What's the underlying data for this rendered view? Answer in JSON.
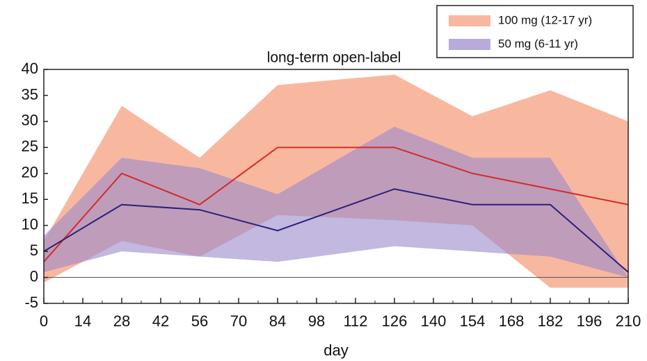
{
  "chart_data": {
    "type": "line",
    "title": "long-term open-label",
    "x_label": "day",
    "x": [
      0,
      28,
      56,
      84,
      126,
      154,
      182,
      210
    ],
    "series": [
      {
        "name": "100 mg (12-17 yr)",
        "color": "#d42a2a",
        "band_color": "#f7ab8f",
        "values": [
          3,
          20,
          14,
          25,
          25,
          20,
          17,
          14
        ],
        "upper": [
          7,
          33,
          23,
          37,
          39,
          31,
          36,
          30
        ],
        "lower": [
          -1,
          7,
          4,
          12,
          11,
          10,
          -2,
          -2
        ]
      },
      {
        "name": "50 mg (6-11 yr)",
        "color": "#2a1f7a",
        "band_color": "#9a88cc",
        "values": [
          5,
          14,
          13,
          9,
          17,
          14,
          14,
          1
        ],
        "upper": [
          8,
          23,
          21,
          16,
          29,
          23,
          23,
          0
        ],
        "lower": [
          1,
          5,
          4,
          3,
          6,
          5,
          4,
          0
        ]
      }
    ],
    "xlim": [
      0,
      210
    ],
    "xticks": [
      0,
      14,
      28,
      42,
      56,
      70,
      84,
      98,
      112,
      126,
      140,
      154,
      168,
      182,
      196,
      210
    ],
    "ylim": [
      -5,
      40
    ],
    "yticks": [
      -5,
      0,
      5,
      10,
      15,
      20,
      25,
      30,
      35,
      40
    ]
  }
}
